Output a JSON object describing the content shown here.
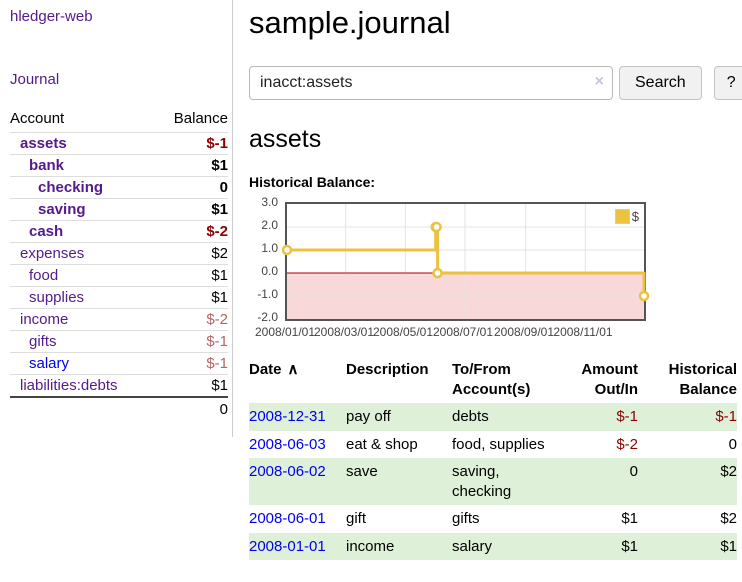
{
  "palette": {
    "link_purple": "#551a8b",
    "link_blue": "#0000ee",
    "negative_strong": "#8b0000",
    "negative_soft": "#b36666",
    "row_stripe_green": "#dff0d8",
    "series_gold": "#edc240"
  },
  "sidebar": {
    "brand": "hledger-web",
    "journal_link": "Journal",
    "accounts_header": {
      "account": "Account",
      "balance": "Balance"
    },
    "accounts": [
      {
        "name": "assets",
        "indent": 1,
        "bold": true,
        "balance": "$-1"
      },
      {
        "name": "bank",
        "indent": 2,
        "bold": true,
        "balance": "$1"
      },
      {
        "name": "checking",
        "indent": 3,
        "bold": true,
        "balance": "0"
      },
      {
        "name": "saving",
        "indent": 3,
        "bold": true,
        "balance": "$1"
      },
      {
        "name": "cash",
        "indent": 2,
        "bold": true,
        "balance": "$-2"
      },
      {
        "name": "expenses",
        "indent": 1,
        "bold": false,
        "balance": "$2"
      },
      {
        "name": "food",
        "indent": 2,
        "bold": false,
        "balance": "$1"
      },
      {
        "name": "supplies",
        "indent": 2,
        "bold": false,
        "balance": "$1"
      },
      {
        "name": "income",
        "indent": 1,
        "bold": false,
        "balance": "$-2"
      },
      {
        "name": "gifts",
        "indent": 2,
        "bold": false,
        "balance": "$-1"
      },
      {
        "name": "salary",
        "indent": 2,
        "bold": false,
        "balance": "$-1",
        "blue": true
      },
      {
        "name": "liabilities:debts",
        "indent": 1,
        "bold": false,
        "balance": "$1"
      }
    ],
    "total": "0"
  },
  "header": {
    "title": "sample.journal"
  },
  "search": {
    "value": "inacct:assets",
    "clear_icon": "×",
    "button": "Search",
    "help_button": "?"
  },
  "account_page": {
    "heading": "assets",
    "chart_label": "Historical Balance:"
  },
  "chart_data": {
    "type": "line",
    "step": true,
    "title": "Historical Balance:",
    "series": [
      {
        "name": "$",
        "color": "#edc240",
        "marker": "open-circle",
        "points": [
          [
            "2008-01-01",
            1
          ],
          [
            "2008-06-01",
            2
          ],
          [
            "2008-06-02",
            2
          ],
          [
            "2008-06-03",
            0
          ],
          [
            "2008-12-31",
            -1
          ]
        ]
      }
    ],
    "x_ticks": [
      "2008/01/01",
      "2008/03/01",
      "2008/05/01",
      "2008/07/01",
      "2008/09/01",
      "2008/11/01"
    ],
    "y_ticks": [
      3.0,
      2.0,
      1.0,
      0.0,
      -1.0,
      -2.0
    ],
    "xlim": [
      "2008-01-01",
      "2008-12-31"
    ],
    "ylim": [
      -2,
      3
    ],
    "legend": {
      "label": "$",
      "position": "top-right"
    },
    "grid": true,
    "zero_line_color": "#a40000",
    "negative_region_color": "#f8d8d8"
  },
  "table": {
    "columns": [
      {
        "key": "date",
        "label": "Date",
        "align": "left",
        "sort_icon": "∧"
      },
      {
        "key": "description",
        "label": "Description",
        "align": "left"
      },
      {
        "key": "accounts",
        "label": "To/From Account(s)",
        "align": "left"
      },
      {
        "key": "amount",
        "label": "Amount Out/In",
        "align": "right"
      },
      {
        "key": "balance",
        "label": "Historical Balance",
        "align": "right"
      }
    ],
    "rows": [
      {
        "date": "2008-12-31",
        "description": "pay off",
        "accounts": "debts",
        "amount": "$-1",
        "balance": "$-1"
      },
      {
        "date": "2008-06-03",
        "description": "eat & shop",
        "accounts": "food, supplies",
        "amount": "$-2",
        "balance": "0"
      },
      {
        "date": "2008-06-02",
        "description": "save",
        "accounts": "saving, checking",
        "amount": "0",
        "balance": "$2"
      },
      {
        "date": "2008-06-01",
        "description": "gift",
        "accounts": "gifts",
        "amount": "$1",
        "balance": "$2"
      },
      {
        "date": "2008-01-01",
        "description": "income",
        "accounts": "salary",
        "amount": "$1",
        "balance": "$1"
      }
    ]
  }
}
